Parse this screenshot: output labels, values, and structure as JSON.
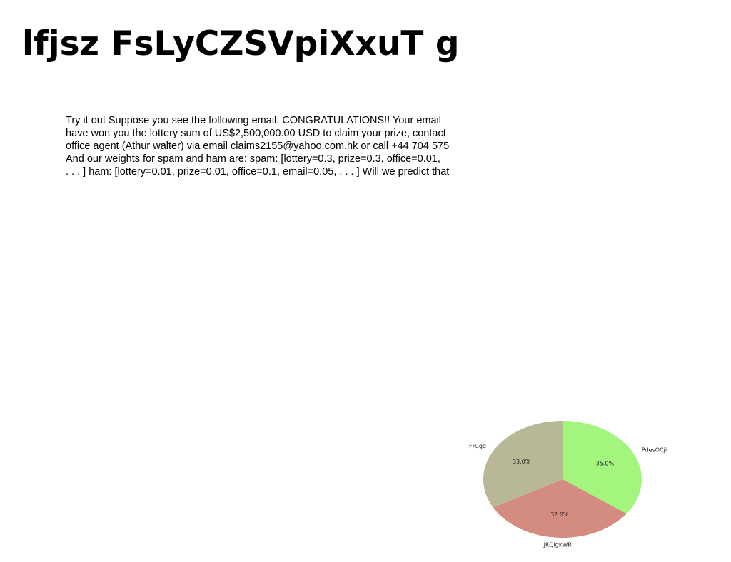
{
  "page": {
    "title": "lfjsz FsLyCZSVpiXxuT g",
    "body_lines": [
      "Try it out Suppose you see the following email: CONGRATULATIONS!! Your email",
      "have won you the lottery sum of US$2,500,000.00 USD to claim your prize, contact",
      "office agent (Athur walter) via email claims2155@yahoo.com.hk or call +44 704 575",
      "And our weights for spam and ham are: spam: [lottery=0.3, prize=0.3, office=0.01,",
      ". . . ] ham: [lottery=0.01, prize=0.01, office=0.1, email=0.05, . . . ] Will we predict that"
    ]
  },
  "chart_data": {
    "type": "pie",
    "slices": [
      {
        "label": "PdesOCji",
        "value": 35.0,
        "pct_label": "35.0%",
        "color": "#a4f57e"
      },
      {
        "label": "lJKQigkWR",
        "value": 32.0,
        "pct_label": "32.0%",
        "color": "#d48b80"
      },
      {
        "label": "FFugd",
        "value": 33.0,
        "pct_label": "33.0%",
        "color": "#b8b896"
      }
    ],
    "start_angle_deg": 90,
    "direction": "clockwise"
  }
}
